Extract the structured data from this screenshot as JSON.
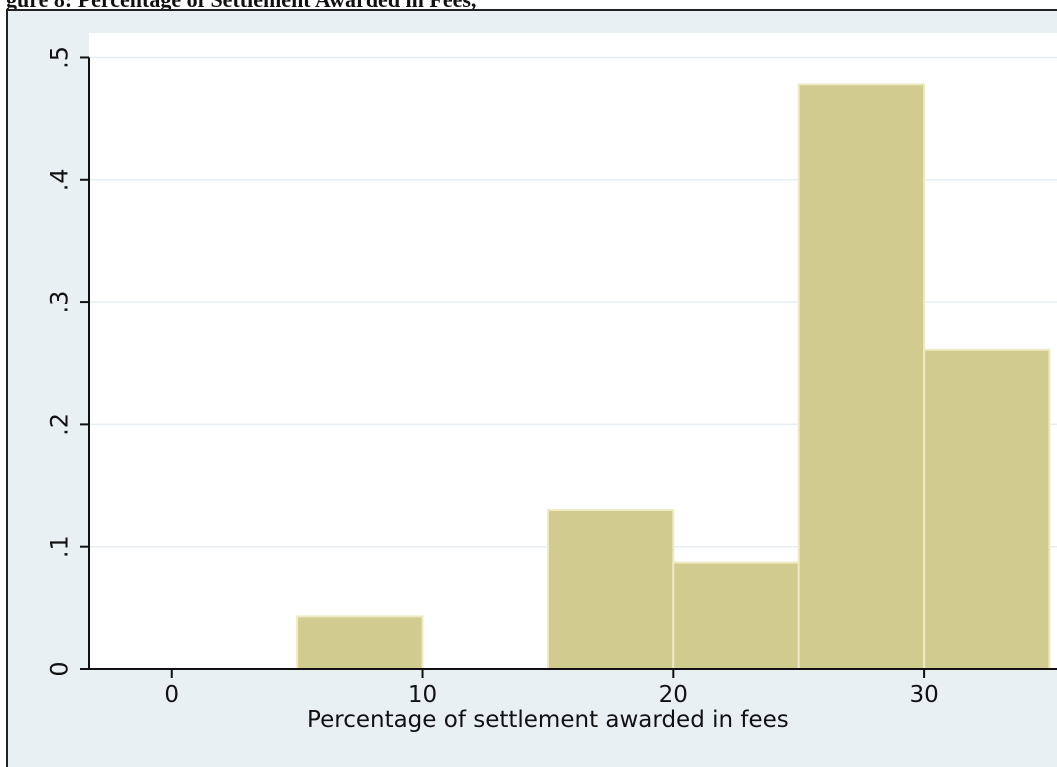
{
  "heading_text": "gure 8: Percentage of Settlement Awarded in Fees, ",
  "colors": {
    "outer_background": "#e9f0f4",
    "plot_background": "#ffffff",
    "bar_fill": "#d1cb8f",
    "bar_stroke": "#eeeac3",
    "axis": "#111111",
    "grid": "#e7eef2"
  },
  "chart_data": {
    "type": "bar",
    "subtype": "histogram",
    "title": "",
    "xlabel": "Percentage of settlement awarded in fees",
    "ylabel": "",
    "xlim": [
      -3.3,
      35.3
    ],
    "ylim": [
      0,
      0.52
    ],
    "xticks": [
      0,
      10,
      20,
      30
    ],
    "xtick_labels": [
      "0",
      "10",
      "20",
      "30"
    ],
    "yticks": [
      0,
      0.1,
      0.2,
      0.3,
      0.4,
      0.5
    ],
    "ytick_labels": [
      "0",
      ".1",
      ".2",
      ".3",
      ".4",
      ".5"
    ],
    "grid": true,
    "legend": "none",
    "bins": [
      {
        "x0": 5,
        "x1": 10,
        "value": 0.043
      },
      {
        "x0": 15,
        "x1": 20,
        "value": 0.13
      },
      {
        "x0": 20,
        "x1": 25,
        "value": 0.087
      },
      {
        "x0": 25,
        "x1": 30,
        "value": 0.478
      },
      {
        "x0": 30,
        "x1": 35,
        "value": 0.261
      }
    ]
  }
}
